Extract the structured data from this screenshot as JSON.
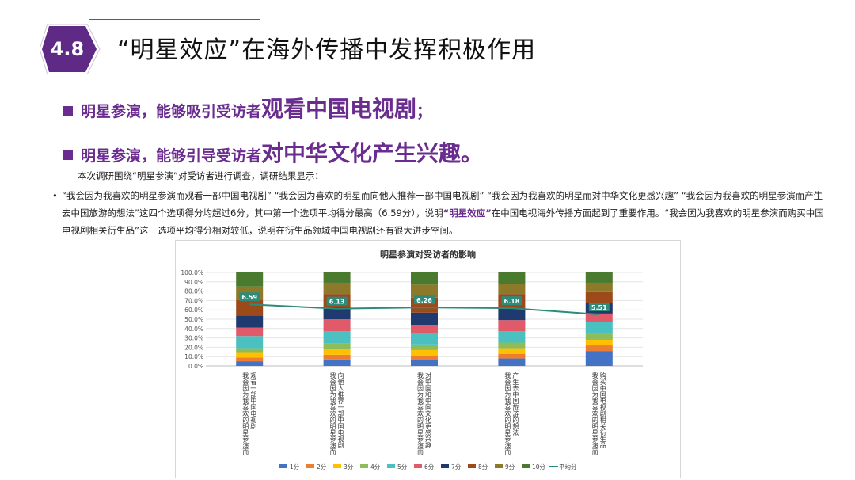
{
  "header": {
    "badge": "4.8",
    "title": "“明星效应”在海外传播中发挥积极作用"
  },
  "bullets": [
    {
      "normal": "明星参演，能够吸引受访者",
      "emph": "观看中国电视剧",
      "tail": "；"
    },
    {
      "normal": "明星参演，能够引导受访者",
      "emph": "对中华文化产生兴趣。",
      "tail": ""
    }
  ],
  "intro": "本次调研围绕“明星参演”对受访者进行调查，调研结果显示：",
  "paragraph": {
    "bullet": "•",
    "part1": "“我会因为我喜欢的明星参演而观看一部中国电视剧” “我会因为喜欢的明星而向他人推荐一部中国电视剧” “我会因为我喜欢的明星而对中华文化更感兴趣” “我会因为我喜欢的明星参演而产生去中国旅游的想法”这四个选项得分均超过6分，其中第一个选项平均得分最高（6.59分），说明",
    "highlight": "“明星效应”",
    "part2": "在中国电视海外传播方面起到了重要作用。“我会因为我喜欢的明星参演而购买中国电视剧相关衍生品”这一选项平均得分相对较低，说明在衍生品领域中国电视剧还有很大进步空间。"
  },
  "chart_data": {
    "type": "bar",
    "stacked": true,
    "title": "明星参演对受访者的影响",
    "ylim": [
      0,
      100
    ],
    "yticks": [
      "0.0%",
      "10.0%",
      "20.0%",
      "30.0%",
      "40.0%",
      "50.0%",
      "60.0%",
      "70.0%",
      "80.0%",
      "90.0%",
      "100.0%"
    ],
    "grid": true,
    "legend_position": "bottom",
    "categories": [
      "我会因为我喜欢的明星参演而观看一部中国电视剧",
      "我会因为我喜欢的明星参演而向他人推荐一部中国电视剧",
      "我会因为我喜欢的明星参演而对中国和中国文化更感兴趣",
      "我会因为我喜欢的明星参演而产生去中国旅游的想法",
      "我会因为我喜欢的明星参演而购买中国电视剧相关衍生品"
    ],
    "series": [
      {
        "name": "1分",
        "color": "#4472c4",
        "values": [
          5,
          7,
          6,
          8,
          16
        ]
      },
      {
        "name": "2分",
        "color": "#ed7d31",
        "values": [
          4,
          5,
          5,
          5,
          6
        ]
      },
      {
        "name": "3分",
        "color": "#ffc000",
        "values": [
          5,
          6,
          6,
          6,
          6
        ]
      },
      {
        "name": "4分",
        "color": "#8fbc5a",
        "values": [
          5,
          6,
          6,
          6,
          6
        ]
      },
      {
        "name": "5分",
        "color": "#4bc0c0",
        "values": [
          13,
          13,
          12,
          12,
          13
        ]
      },
      {
        "name": "6分",
        "color": "#e05a6a",
        "values": [
          9,
          13,
          9,
          12,
          9
        ]
      },
      {
        "name": "7分",
        "color": "#1f3a6e",
        "values": [
          13,
          13,
          13,
          12,
          11
        ]
      },
      {
        "name": "8分",
        "color": "#9c4a1a",
        "values": [
          17,
          14,
          16,
          16,
          12
        ]
      },
      {
        "name": "9分",
        "color": "#8c7a2a",
        "values": [
          14,
          12,
          14,
          11,
          10
        ]
      },
      {
        "name": "10分",
        "color": "#4a7a2e",
        "values": [
          15,
          11,
          13,
          12,
          11
        ]
      }
    ],
    "line_series": {
      "name": "平均分",
      "color": "#2e8b7a",
      "values": [
        6.59,
        6.13,
        6.26,
        6.18,
        5.51
      ]
    },
    "data_labels": [
      "6.59",
      "6.13",
      "6.26",
      "6.18",
      "5.51"
    ]
  }
}
